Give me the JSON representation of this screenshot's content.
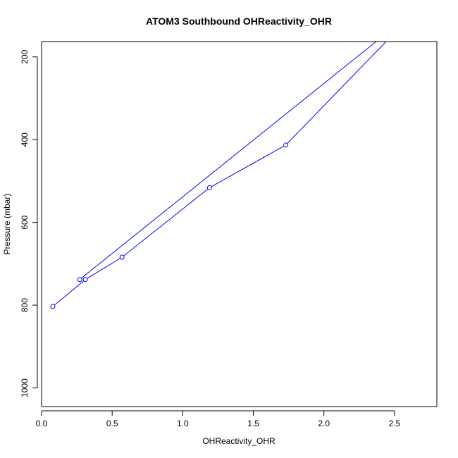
{
  "chart_data": {
    "type": "line",
    "title": "ATOM3 Southbound OHReactivity_OHR",
    "xlabel": "OHReactivity_OHR",
    "ylabel": "Pressure (mbar)",
    "xlim": [
      0,
      2.8
    ],
    "ylim": [
      1045,
      163
    ],
    "y_axis_reversed": true,
    "grid": false,
    "x_ticks": [
      "0.0",
      "0.5",
      "1.0",
      "1.5",
      "2.0",
      "2.5"
    ],
    "y_ticks": [
      "200",
      "400",
      "600",
      "800",
      "1000"
    ],
    "series": [
      {
        "line_points": [
          {
            "x": 0.08,
            "y": 803
          },
          {
            "x": 0.31,
            "y": 738
          },
          {
            "x": 0.57,
            "y": 684
          },
          {
            "x": 1.19,
            "y": 516
          },
          {
            "x": 1.73,
            "y": 413
          },
          {
            "x": 2.44,
            "y": 163
          }
        ],
        "return_line_points": [
          {
            "x": 2.37,
            "y": 163
          },
          {
            "x": 0.27,
            "y": 738
          }
        ],
        "marker_points": [
          {
            "x": 0.08,
            "y": 803
          },
          {
            "x": 0.27,
            "y": 738
          },
          {
            "x": 0.31,
            "y": 738
          },
          {
            "x": 0.57,
            "y": 684
          },
          {
            "x": 1.19,
            "y": 516
          },
          {
            "x": 1.73,
            "y": 413
          }
        ],
        "color": "#0000ff",
        "marker": "open-circle"
      }
    ]
  }
}
